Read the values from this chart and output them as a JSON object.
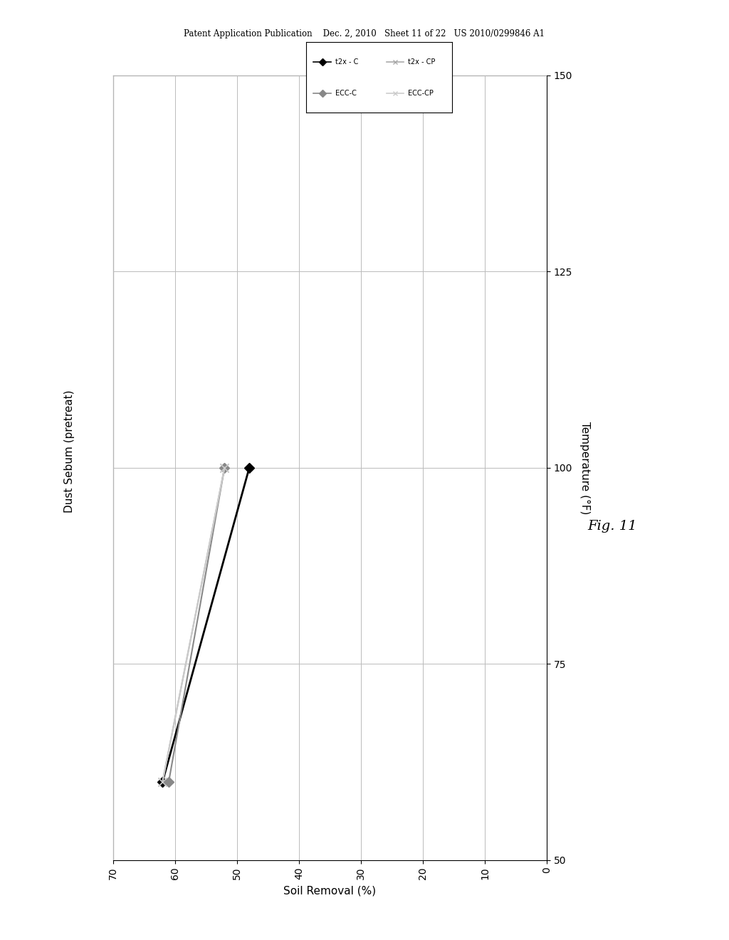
{
  "header_text": "Patent Application Publication    Dec. 2, 2010   Sheet 11 of 22   US 2010/0299846 A1",
  "chart_title": "Dust Sebum (pretreat)",
  "x_label": "Soil Removal (%)",
  "y_label": "Temperature (°F)",
  "fig_label": "Fig. 11",
  "x_min": 0,
  "x_max": 70,
  "x_ticks": [
    0,
    10,
    20,
    30,
    40,
    50,
    60,
    70
  ],
  "y_min": 50,
  "y_max": 150,
  "y_ticks": [
    50,
    75,
    100,
    125,
    150
  ],
  "series": [
    {
      "label": "t2x - C",
      "x": [
        62,
        48
      ],
      "y": [
        60,
        100
      ],
      "color": "#000000",
      "marker": "D",
      "markersize": 7,
      "linewidth": 2.0
    },
    {
      "label": "ECC-C",
      "x": [
        61,
        52
      ],
      "y": [
        60,
        100
      ],
      "color": "#888888",
      "marker": "D",
      "markersize": 7,
      "linewidth": 1.5
    },
    {
      "label": "t2x - CP",
      "x": [
        62,
        52
      ],
      "y": [
        60,
        100
      ],
      "color": "#aaaaaa",
      "marker": "x",
      "markersize": 9,
      "linewidth": 1.5
    },
    {
      "label": "ECC-CP",
      "x": [
        62,
        52
      ],
      "y": [
        60,
        100
      ],
      "color": "#cccccc",
      "marker": "x",
      "markersize": 9,
      "linewidth": 1.5
    }
  ],
  "legend_labels": [
    "t2x - C",
    "ECC-C",
    "t2x - CP",
    "ECC-CP"
  ],
  "legend_colors": [
    "#000000",
    "#888888",
    "#aaaaaa",
    "#cccccc"
  ],
  "legend_markers": [
    "D",
    "D",
    "x",
    "x"
  ],
  "background_color": "#ffffff",
  "grid_color": "#bbbbbb"
}
